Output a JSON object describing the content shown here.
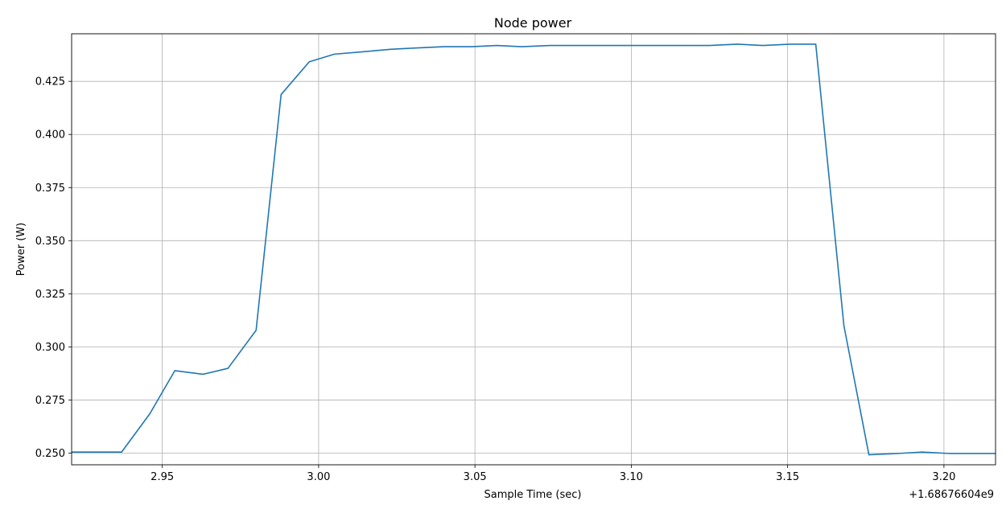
{
  "chart_data": {
    "type": "line",
    "title": "Node power",
    "xlabel": "Sample Time (sec)",
    "ylabel": "Power (W)",
    "x_offset_label": "+1.68676604e9",
    "xlim": [
      2.921,
      3.2165
    ],
    "ylim": [
      0.2445,
      0.4474
    ],
    "grid": true,
    "x_ticks": [
      2.95,
      3.0,
      3.05,
      3.1,
      3.15,
      3.2
    ],
    "x_tick_labels": [
      "2.95",
      "3.00",
      "3.05",
      "3.10",
      "3.15",
      "3.20"
    ],
    "y_ticks": [
      0.25,
      0.275,
      0.3,
      0.325,
      0.35,
      0.375,
      0.4,
      0.425
    ],
    "y_tick_labels": [
      "0.250",
      "0.275",
      "0.300",
      "0.325",
      "0.350",
      "0.375",
      "0.400",
      "0.425"
    ],
    "colors": {
      "line": "#1f77b4",
      "grid": "#b0b0b0",
      "axes": "#000000"
    },
    "series": [
      {
        "x": [
          2.921,
          2.937,
          2.946,
          2.954,
          2.963,
          2.971,
          2.98,
          2.988,
          2.997,
          3.005,
          3.014,
          3.023,
          3.031,
          3.04,
          3.049,
          3.057,
          3.065,
          3.074,
          3.083,
          3.091,
          3.1,
          3.108,
          3.117,
          3.125,
          3.134,
          3.142,
          3.151,
          3.159,
          3.168,
          3.176,
          3.185,
          3.193,
          3.202,
          3.2165
        ],
        "y": [
          0.2505,
          0.2505,
          0.2685,
          0.2888,
          0.2871,
          0.2899,
          0.3078,
          0.4188,
          0.4342,
          0.4378,
          0.4389,
          0.4401,
          0.4407,
          0.4413,
          0.4413,
          0.4419,
          0.4413,
          0.4419,
          0.4419,
          0.4419,
          0.4419,
          0.4419,
          0.4419,
          0.4419,
          0.4425,
          0.4419,
          0.4425,
          0.4425,
          0.31,
          0.2492,
          0.2498,
          0.2505,
          0.2498,
          0.2498
        ]
      }
    ]
  }
}
